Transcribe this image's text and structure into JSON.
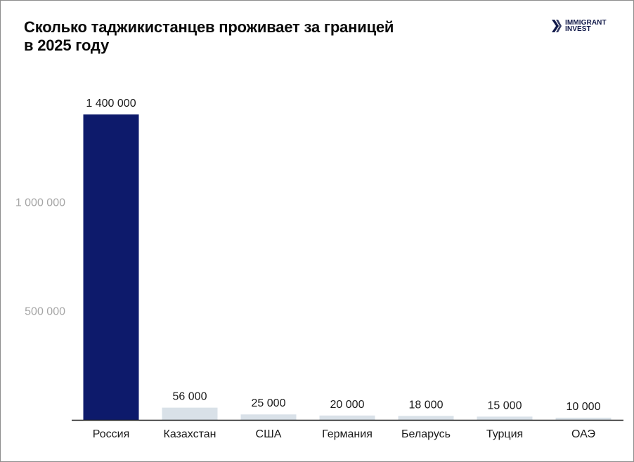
{
  "brand": {
    "name_line1": "IMMIGRANT",
    "name_line2": "INVEST"
  },
  "colors": {
    "highlight": "#0d1a6b",
    "bar": "#d9e1e8",
    "axis": "#1a1a1a",
    "ytick": "#a5a5a5"
  },
  "chart_data": {
    "type": "bar",
    "title_line1": "Сколько таджикистанцев проживает за границей",
    "title_line2": "в 2025 году",
    "categories": [
      "Россия",
      "Казахстан",
      "США",
      "Германия",
      "Беларусь",
      "Турция",
      "ОАЭ"
    ],
    "values": [
      1400000,
      56000,
      25000,
      20000,
      18000,
      15000,
      10000
    ],
    "data_labels": [
      "1 400 000",
      "56 000",
      "25 000",
      "20 000",
      "18 000",
      "15 000",
      "10 000"
    ],
    "highlight_index": 0,
    "yticks": [
      500000,
      1000000
    ],
    "ytick_labels": [
      "500 000",
      "1 000 000"
    ],
    "ylim": [
      0,
      1400000
    ],
    "grid": false,
    "xlabel": "",
    "ylabel": ""
  }
}
